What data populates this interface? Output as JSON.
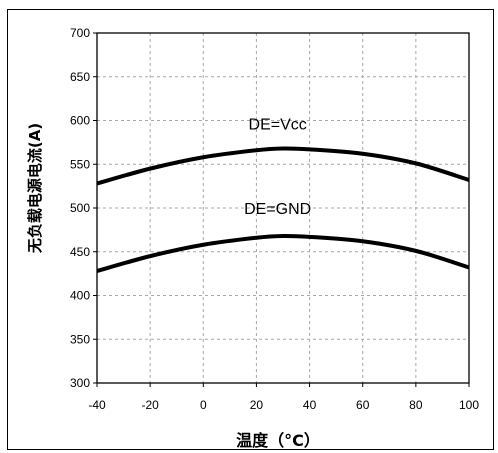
{
  "chart_data": {
    "type": "line",
    "title": "",
    "xlabel": "温度（°C）",
    "ylabel": "无负载电源电流(A)",
    "xlim": [
      -40,
      100
    ],
    "ylim": [
      300,
      700
    ],
    "xticks": [
      -40,
      -20,
      0,
      20,
      40,
      60,
      80,
      100
    ],
    "yticks": [
      300,
      350,
      400,
      450,
      500,
      550,
      600,
      650,
      700
    ],
    "grid": true,
    "legend": "none",
    "series": [
      {
        "name": "DE=Vcc",
        "x": [
          -40,
          -20,
          0,
          20,
          30,
          40,
          60,
          80,
          100
        ],
        "y": [
          528,
          545,
          558,
          566,
          568,
          567,
          562,
          551,
          532
        ]
      },
      {
        "name": "DE=GND",
        "x": [
          -40,
          -20,
          0,
          20,
          30,
          40,
          60,
          80,
          100
        ],
        "y": [
          428,
          445,
          458,
          466,
          468,
          467,
          462,
          451,
          432
        ]
      }
    ],
    "annotations": [
      {
        "text": "DE=Vcc",
        "x": 28,
        "y": 590
      },
      {
        "text": "DE=GND",
        "x": 28,
        "y": 493
      }
    ],
    "line_color": "#000000",
    "grid_color": "#a8a8a8"
  }
}
